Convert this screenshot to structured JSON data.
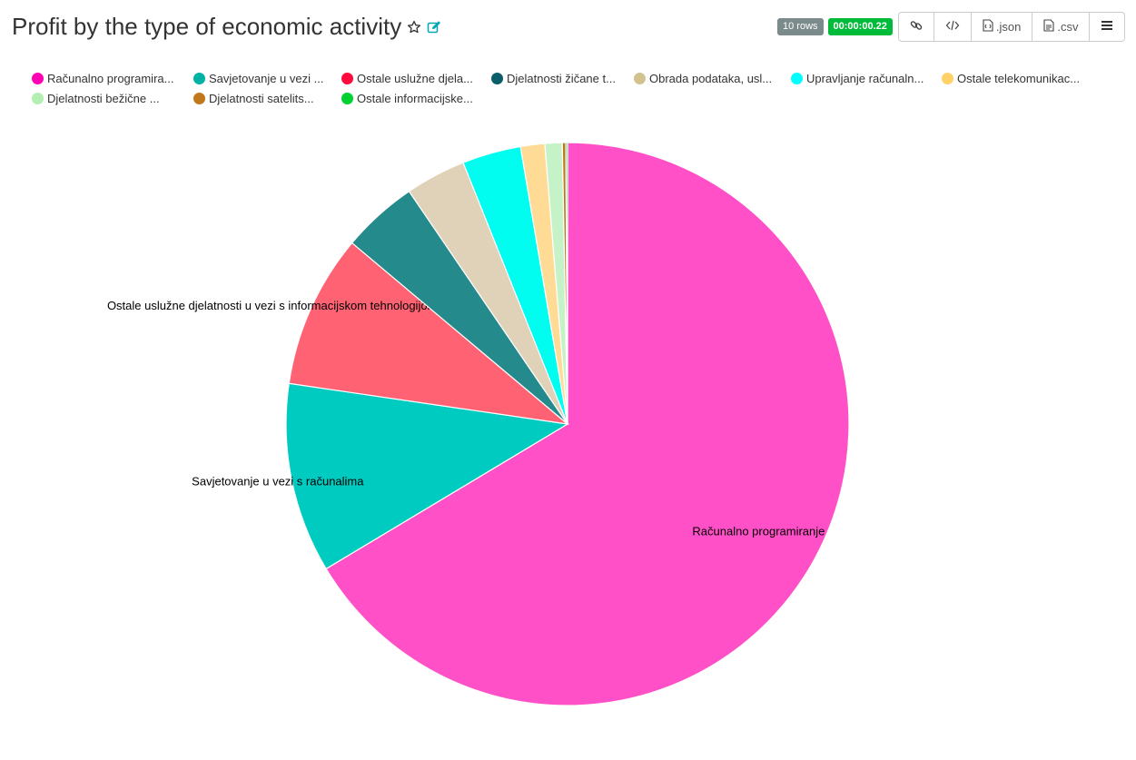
{
  "header": {
    "title": "Profit by the type of economic activity"
  },
  "toolbar": {
    "rows_badge": "10 rows",
    "time_badge": "00:00:00.22",
    "json_label": ".json",
    "csv_label": ".csv"
  },
  "legend": {
    "items": [
      {
        "label": "Računalno programira...",
        "color": "#ff00b4"
      },
      {
        "label": "Savjetovanje u vezi ...",
        "color": "#00b2a5"
      },
      {
        "label": "Ostale uslužne djela...",
        "color": "#ff0a3c"
      },
      {
        "label": "Djelatnosti žičane t...",
        "color": "#0a5e6a"
      },
      {
        "label": "Obrada podataka, usl...",
        "color": "#d2c290"
      },
      {
        "label": "Upravljanje računaln...",
        "color": "#00ffff"
      },
      {
        "label": "Ostale telekomunikac...",
        "color": "#ffd166"
      },
      {
        "label": "Djelatnosti bežične ...",
        "color": "#b3efb0"
      },
      {
        "label": "Djelatnosti satelits...",
        "color": "#c0781a"
      },
      {
        "label": "Ostale informacijske...",
        "color": "#00d232"
      }
    ]
  },
  "chart_data": {
    "type": "pie",
    "title": "Profit by the type of economic activity",
    "slices": [
      {
        "label": "Računalno programiranje",
        "value": 67.0,
        "color": "#ff50c8",
        "show_label": true
      },
      {
        "label": "Savjetovanje u vezi s računalima",
        "value": 11.0,
        "color": "#00cbc0",
        "show_label": true
      },
      {
        "label": "Ostale uslužne djelatnosti u vezi s informacijskom tehnologijom i računalima",
        "value": 8.9,
        "color": "#ff6272",
        "show_label": true
      },
      {
        "label": "Djelatnosti žičane t...",
        "value": 4.4,
        "color": "#248a8b",
        "show_label": false
      },
      {
        "label": "Obrada podataka, usl...",
        "value": 3.5,
        "color": "#dfd2b8",
        "show_label": false
      },
      {
        "label": "Upravljanje računaln...",
        "value": 3.4,
        "color": "#00fdf0",
        "show_label": false
      },
      {
        "label": "Ostale telekomunikac...",
        "value": 1.4,
        "color": "#ffdb96",
        "show_label": false
      },
      {
        "label": "Djelatnosti bežične ...",
        "value": 1.0,
        "color": "#c6f2c8",
        "show_label": false
      },
      {
        "label": "Djelatnosti satelits...",
        "value": 0.2,
        "color": "#c0781a",
        "show_label": false
      },
      {
        "label": "Ostale informacijske...",
        "value": 0.1,
        "color": "#00d232",
        "show_label": false
      }
    ]
  }
}
